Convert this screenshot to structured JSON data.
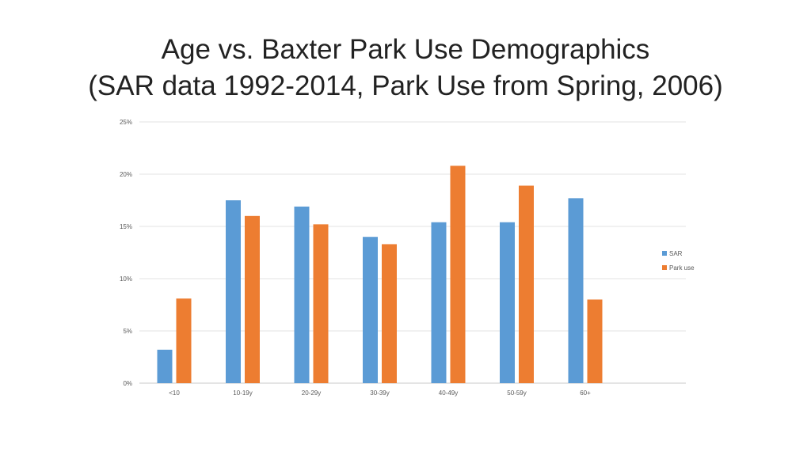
{
  "chart_data": {
    "type": "bar",
    "title": "Age vs. Baxter Park Use Demographics",
    "subtitle": "(SAR data 1992-2014, Park Use from Spring, 2006)",
    "xlabel": "",
    "ylabel": "",
    "categories": [
      "<10",
      "10-19y",
      "20-29y",
      "30-39y",
      "40-49y",
      "50-59y",
      "60+"
    ],
    "series": [
      {
        "name": "SAR",
        "color": "#5B9BD5",
        "values": [
          3.2,
          17.5,
          16.9,
          14.0,
          15.4,
          15.4,
          17.7
        ]
      },
      {
        "name": "Park use",
        "color": "#ED7D31",
        "values": [
          8.1,
          16.0,
          15.2,
          13.3,
          20.8,
          18.9,
          8.0
        ]
      }
    ],
    "ylim": [
      0,
      25
    ],
    "yticks": [
      0,
      5,
      10,
      15,
      20,
      25
    ],
    "ytick_labels": [
      "0%",
      "5%",
      "10%",
      "15%",
      "20%",
      "25%"
    ],
    "grid": true,
    "legend_position": "right"
  }
}
